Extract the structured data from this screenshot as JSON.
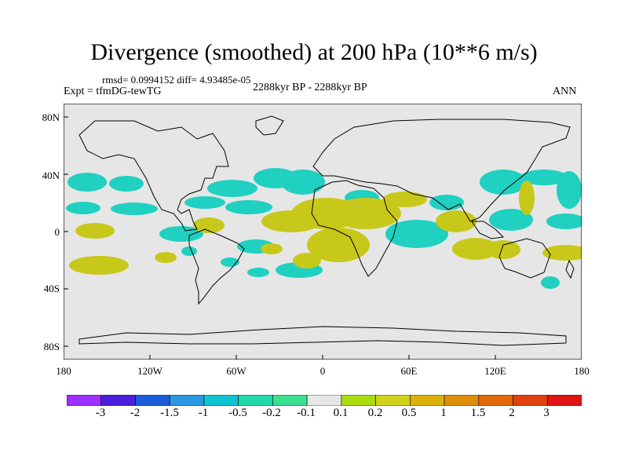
{
  "title": "Divergence (smoothed) at 200 hPa (10**6 m/s)",
  "stats": "rmsd= 0.0994152 diff= 4.93485e-05",
  "experiment": "Expt = tfmDG-tewTG",
  "period": "2288kyr BP - 2288kyr BP",
  "season": "ANN",
  "y_ticks": [
    "80N",
    "40N",
    "0",
    "40S",
    "80S"
  ],
  "x_ticks": [
    "180",
    "120W",
    "60W",
    "0",
    "60E",
    "120E",
    "180"
  ],
  "colorbar": {
    "labels": [
      "-3",
      "-2",
      "-1.5",
      "-1",
      "-0.5",
      "-0.2",
      "-0.1",
      "0.1",
      "0.2",
      "0.5",
      "1",
      "1.5",
      "2",
      "3"
    ],
    "colors": [
      "#9b30ff",
      "#4a1fdc",
      "#1d5cd8",
      "#2a97e0",
      "#10c3d0",
      "#20d8a8",
      "#3ae090",
      "#e6e6e6",
      "#aadc10",
      "#cfd21a",
      "#dcb00a",
      "#e08e08",
      "#e2680a",
      "#e0400e",
      "#e01414"
    ]
  },
  "colors": {
    "land_background": "#e6e6e6",
    "positive_shading": "#c8c81a",
    "negative_shading": "#20d0c0"
  }
}
